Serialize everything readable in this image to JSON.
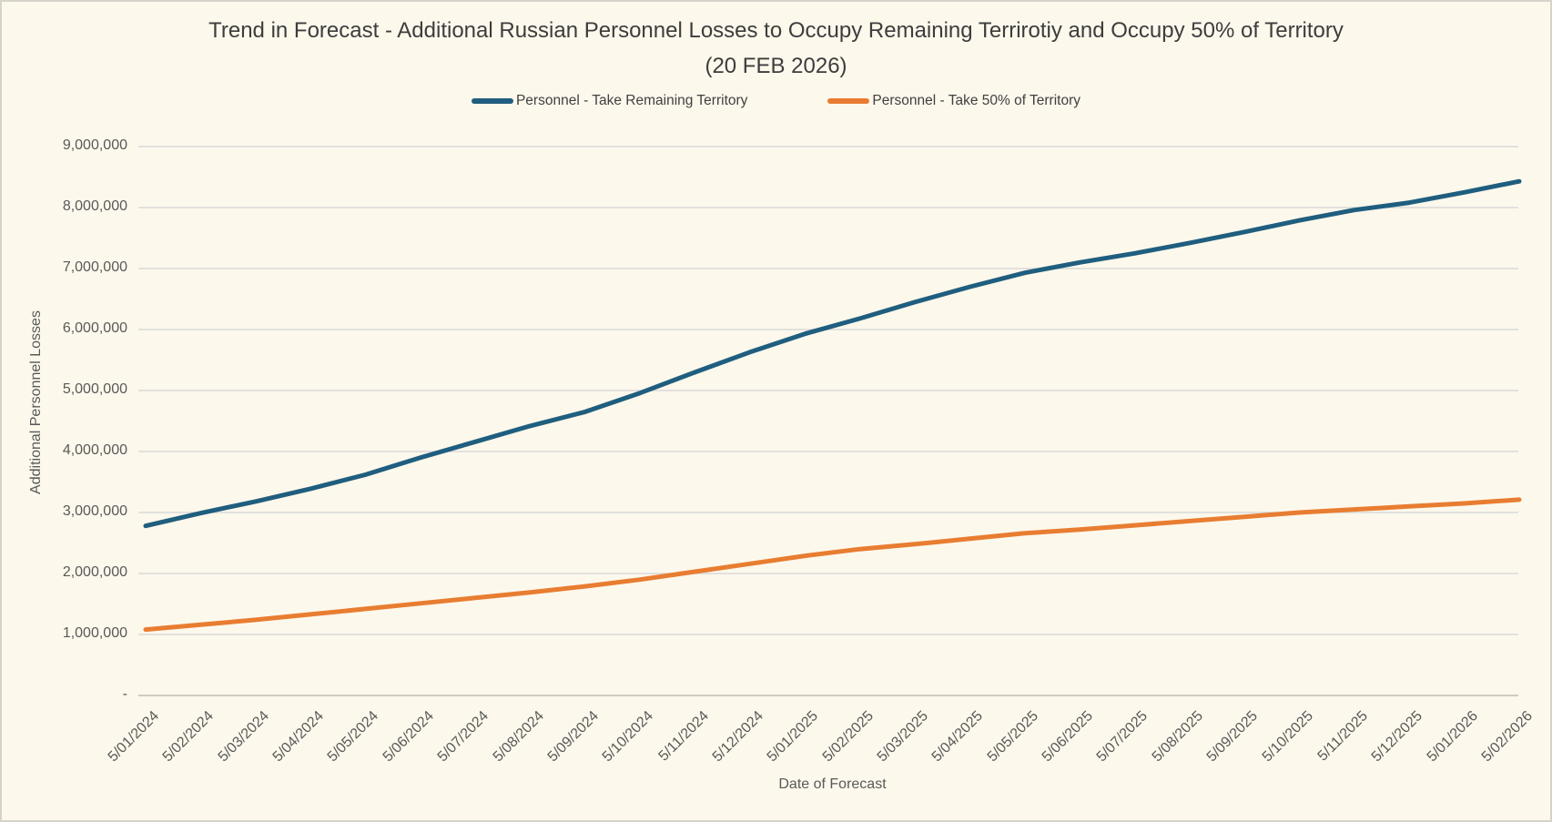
{
  "title": {
    "line1": "Trend in Forecast - Additional Russian Personnel Losses to Occupy Remaining Terrirotiy and Occupy 50% of Territory",
    "line2": "(20 FEB 2026)"
  },
  "colors": {
    "background": "#fdf8ec",
    "border": "#d6d3ca",
    "gridline": "#d9d9d9",
    "axis_text": "#595959",
    "title_text": "#3d3d3d",
    "series_blue": "#1f5e7f",
    "series_orange": "#e87d31"
  },
  "chart_data": {
    "type": "line",
    "title": "Trend in Forecast - Additional Russian Personnel Losses to Occupy Remaining Terrirotiy and Occupy 50% of Territory (20 FEB 2026)",
    "xlabel": "Date of Forecast",
    "ylabel": "Additional Personnel Losses",
    "ylim": [
      0,
      9000000
    ],
    "ytick_step": 1000000,
    "ytick_labels": [
      "-",
      "1,000,000",
      "2,000,000",
      "3,000,000",
      "4,000,000",
      "5,000,000",
      "6,000,000",
      "7,000,000",
      "8,000,000",
      "9,000,000"
    ],
    "grid": true,
    "legend_position": "top",
    "x_labels": [
      "5/01/2024",
      "5/02/2024",
      "5/03/2024",
      "5/04/2024",
      "5/05/2024",
      "5/06/2024",
      "5/07/2024",
      "5/08/2024",
      "5/09/2024",
      "5/10/2024",
      "5/11/2024",
      "5/12/2024",
      "5/01/2025",
      "5/02/2025",
      "5/03/2025",
      "5/04/2025",
      "5/05/2025",
      "5/06/2025",
      "5/07/2025",
      "5/08/2025",
      "5/09/2025",
      "5/10/2025",
      "5/11/2025",
      "5/12/2025",
      "5/01/2026",
      "5/02/2026"
    ],
    "series": [
      {
        "name": "Personnel - Take Remaining Territory",
        "color": "#1f5e7f",
        "values": [
          2780000,
          2990000,
          3180000,
          3390000,
          3620000,
          3900000,
          4160000,
          4420000,
          4650000,
          4960000,
          5300000,
          5630000,
          5930000,
          6180000,
          6450000,
          6700000,
          6930000,
          7100000,
          7250000,
          7420000,
          7600000,
          7790000,
          7960000,
          8080000,
          8250000,
          8430000
        ]
      },
      {
        "name": "Personnel - Take 50% of Territory",
        "color": "#e87d31",
        "values": [
          1080000,
          1160000,
          1240000,
          1330000,
          1420000,
          1510000,
          1600000,
          1690000,
          1790000,
          1900000,
          2030000,
          2160000,
          2290000,
          2400000,
          2480000,
          2570000,
          2660000,
          2720000,
          2790000,
          2860000,
          2930000,
          3000000,
          3050000,
          3100000,
          3150000,
          3210000
        ]
      }
    ]
  }
}
